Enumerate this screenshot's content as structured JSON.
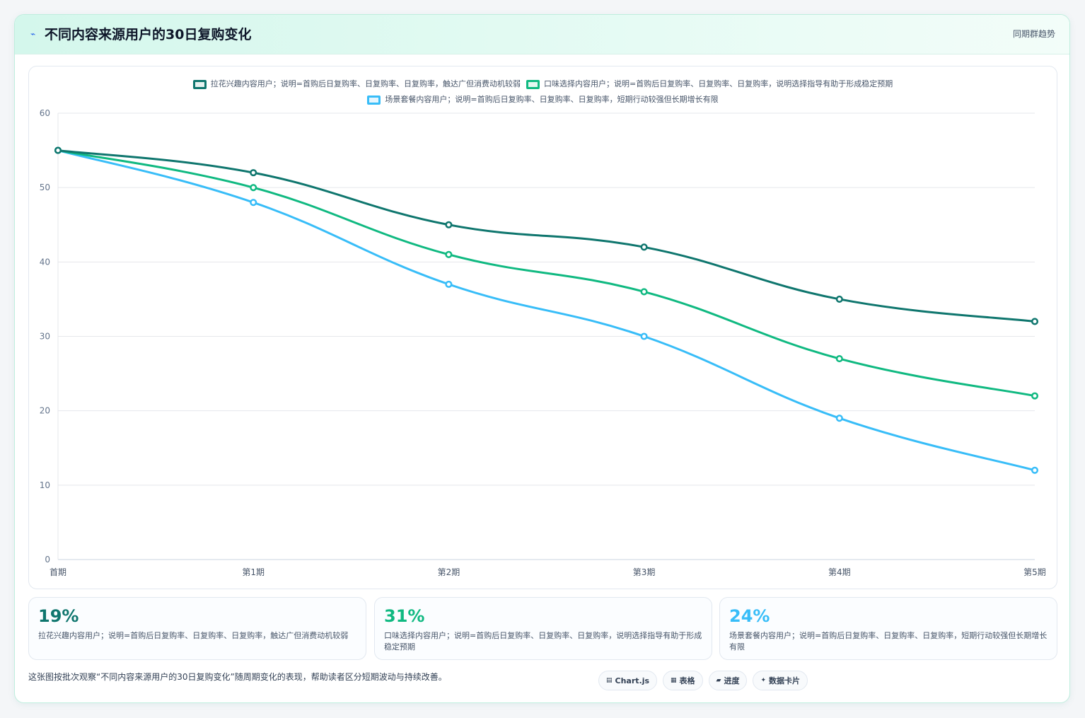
{
  "header": {
    "title_icon": "line-chart-icon",
    "title": "不同内容来源用户的30日复购变化",
    "right_link": "同期群趋势"
  },
  "chart_data": {
    "type": "line",
    "x": [
      "首期",
      "第1期",
      "第2期",
      "第3期",
      "第4期",
      "第5期"
    ],
    "ylim": [
      0,
      60
    ],
    "yticks": [
      0,
      10,
      20,
      30,
      40,
      50,
      60
    ],
    "grid": true,
    "legend_position": "top-center",
    "series": [
      {
        "name": "拉花兴趣内容用户；说明=首购后日复购率、日复购率、日复购率，触达广但消费动机较弱",
        "color": "#0f766e",
        "values": [
          55,
          52,
          45,
          42,
          35,
          32
        ]
      },
      {
        "name": "口味选择内容用户；说明=首购后日复购率、日复购率、日复购率，说明选择指导有助于形成稳定预期",
        "color": "#10b981",
        "values": [
          55,
          50,
          41,
          36,
          27,
          22
        ]
      },
      {
        "name": "场景套餐内容用户；说明=首购后日复购率、日复购率、日复购率，短期行动较强但长期增长有限",
        "color": "#38bdf8",
        "values": [
          55,
          48,
          37,
          30,
          19,
          12
        ]
      }
    ]
  },
  "stats": [
    {
      "value": "19%",
      "color": "#0f766e",
      "desc": "拉花兴趣内容用户；说明=首购后日复购率、日复购率、日复购率，触达广但消费动机较弱"
    },
    {
      "value": "31%",
      "color": "#10b981",
      "desc": "口味选择内容用户；说明=首购后日复购率、日复购率、日复购率，说明选择指导有助于形成稳定预期"
    },
    {
      "value": "24%",
      "color": "#38bdf8",
      "desc": "场景套餐内容用户；说明=首购后日复购率、日复购率、日复购率，短期行动较强但长期增长有限"
    }
  ],
  "footer": {
    "note": "这张图按批次观察“不同内容来源用户的30日复购变化”随周期变化的表现，帮助读者区分短期波动与持续改善。",
    "tags": [
      {
        "icon": "chart-icon",
        "glyph": "▤",
        "label": "Chart.js"
      },
      {
        "icon": "table-icon",
        "glyph": "▦",
        "label": "表格"
      },
      {
        "icon": "progress-icon",
        "glyph": "▰",
        "label": "进度"
      },
      {
        "icon": "sparkle-icon",
        "glyph": "✦",
        "label": "数据卡片"
      }
    ]
  }
}
